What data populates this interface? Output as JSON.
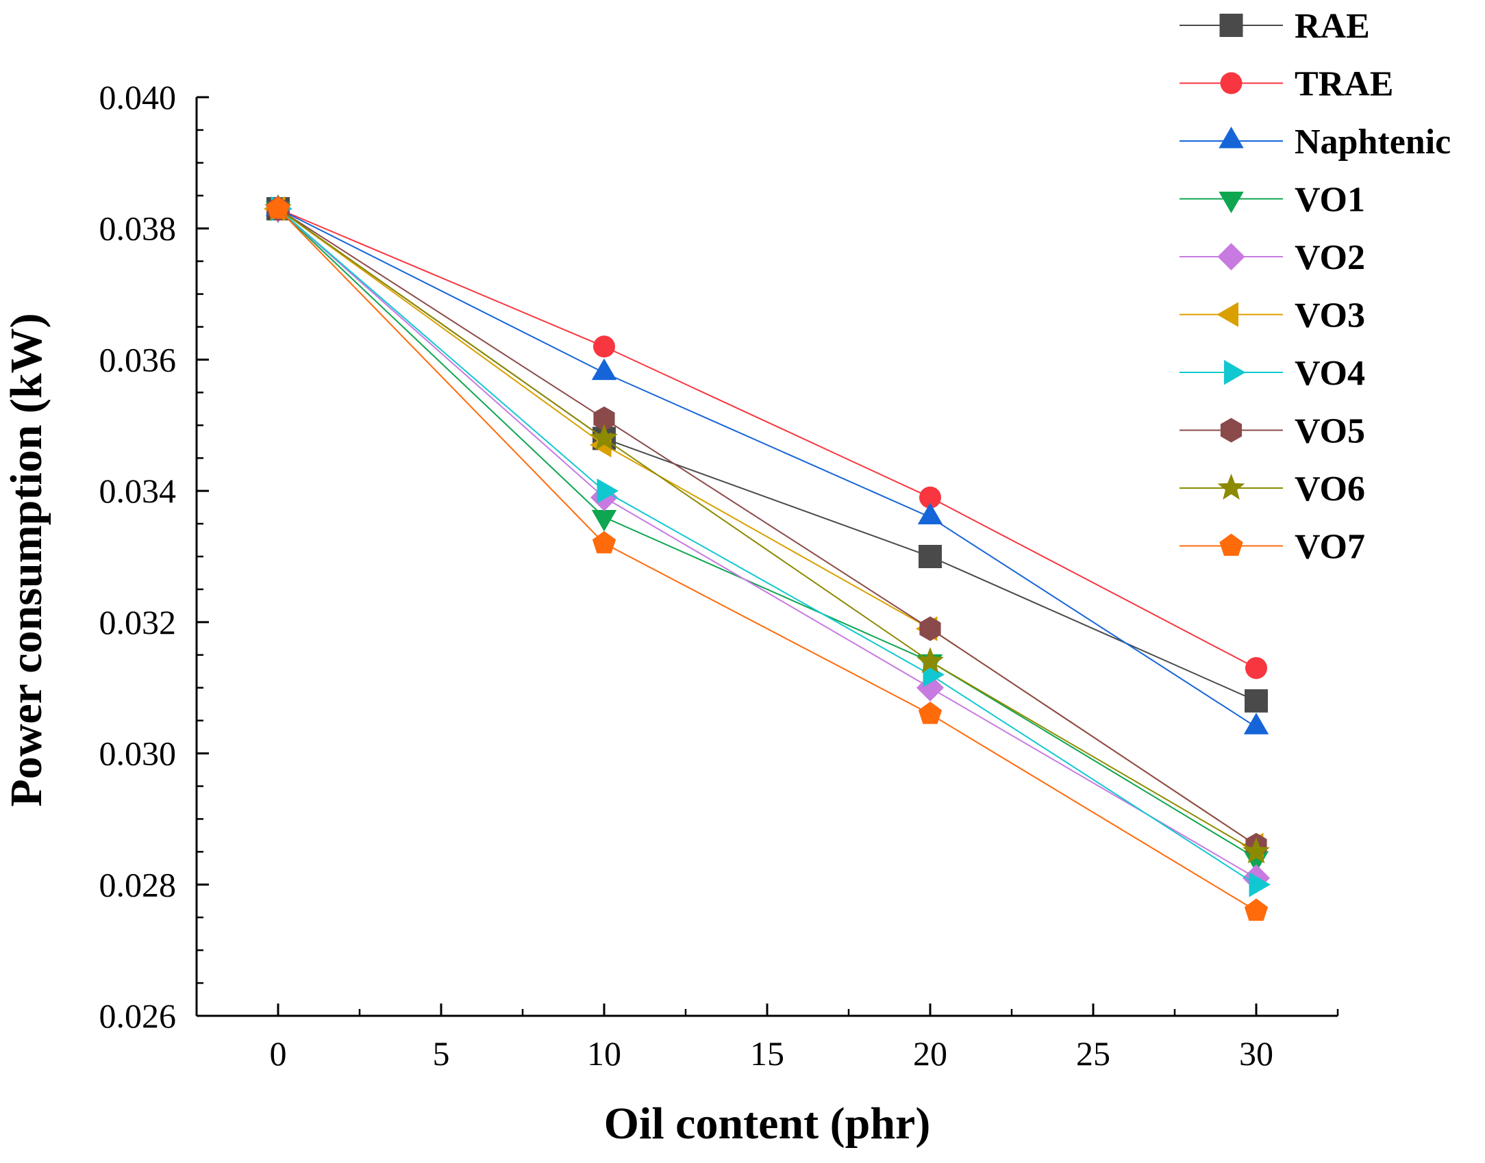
{
  "chart_data": {
    "type": "line",
    "title": "",
    "xlabel": "Oil content (phr)",
    "ylabel": "Power consumption (kW)",
    "xlim": [
      -2.5,
      32.5
    ],
    "ylim": [
      0.026,
      0.04
    ],
    "xticks": [
      0,
      5,
      10,
      15,
      20,
      25,
      30
    ],
    "xtick_labels": [
      "0",
      "5",
      "10",
      "15",
      "20",
      "25",
      "30"
    ],
    "yticks": [
      0.026,
      0.028,
      0.03,
      0.032,
      0.034,
      0.036,
      0.038,
      0.04
    ],
    "ytick_labels": [
      "0.026",
      "0.028",
      "0.030",
      "0.032",
      "0.034",
      "0.036",
      "0.038",
      "0.040"
    ],
    "grid": false,
    "legend_position": "top-right",
    "x": [
      0,
      10,
      20,
      30
    ],
    "series": [
      {
        "name": "RAE",
        "color": "#4a4a4a",
        "marker": "square",
        "values": [
          0.0383,
          0.0348,
          0.033,
          0.0308
        ]
      },
      {
        "name": "TRAE",
        "color": "#f8363f",
        "marker": "circle",
        "values": [
          0.0383,
          0.0362,
          0.0339,
          0.0313
        ]
      },
      {
        "name": "Naphtenic",
        "color": "#1565d8",
        "marker": "triangle-up",
        "values": [
          0.0383,
          0.0358,
          0.0336,
          0.0304
        ]
      },
      {
        "name": "VO1",
        "color": "#0ea650",
        "marker": "triangle-down",
        "values": [
          0.0383,
          0.0336,
          0.0314,
          0.0284
        ]
      },
      {
        "name": "VO2",
        "color": "#c77ae0",
        "marker": "diamond",
        "values": [
          0.0383,
          0.0339,
          0.031,
          0.0281
        ]
      },
      {
        "name": "VO3",
        "color": "#d9a000",
        "marker": "triangle-left",
        "values": [
          0.0383,
          0.0347,
          0.0319,
          0.0286
        ]
      },
      {
        "name": "VO4",
        "color": "#12c8d0",
        "marker": "triangle-right",
        "values": [
          0.0383,
          0.034,
          0.0312,
          0.028
        ]
      },
      {
        "name": "VO5",
        "color": "#8b4a4a",
        "marker": "hexagon",
        "values": [
          0.0383,
          0.0351,
          0.0319,
          0.0286
        ]
      },
      {
        "name": "VO6",
        "color": "#8c8a00",
        "marker": "star",
        "values": [
          0.0383,
          0.0348,
          0.0314,
          0.0285
        ]
      },
      {
        "name": "VO7",
        "color": "#ff6a0a",
        "marker": "pentagon",
        "values": [
          0.0383,
          0.0332,
          0.0306,
          0.0276
        ]
      }
    ]
  }
}
